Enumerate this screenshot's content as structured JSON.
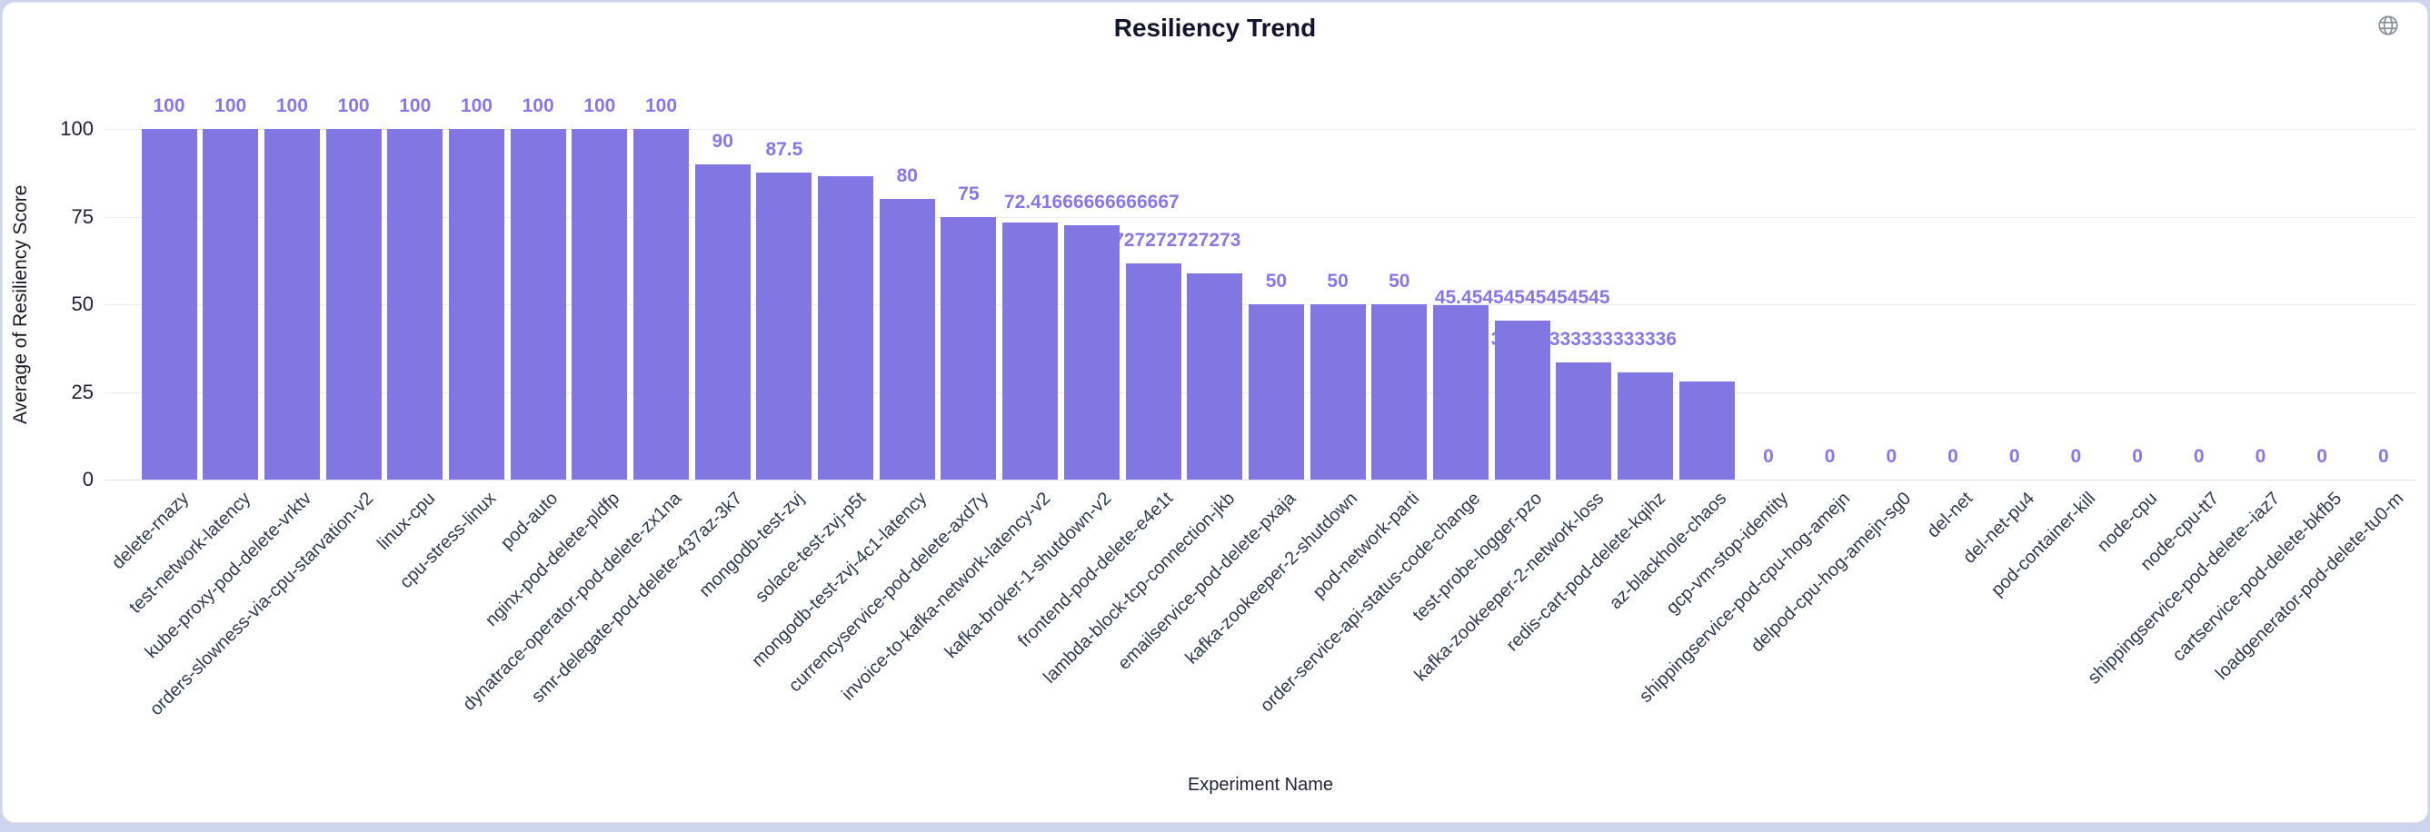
{
  "header": {
    "title": "Resiliency Trend",
    "globe_icon": "globe-icon"
  },
  "colors": {
    "bar": "#8277e2",
    "data_label": "#8678e8",
    "gridline": "#ececf1",
    "zero_line": "#dfe1e9",
    "axis_tick_text": "#1e1e2e",
    "x_label_text": "#2e3950",
    "card_background": "#ffffff",
    "page_background": "#ccd5ed"
  },
  "chart_data": {
    "type": "bar",
    "title": "Resiliency Trend",
    "xlabel": "Experiment Name",
    "ylabel": "Average of Resiliency Score",
    "ylim": [
      0,
      100
    ],
    "yticks": [
      0,
      25,
      50,
      75,
      100
    ],
    "grid": true,
    "legend": false,
    "categories": [
      "delete-rnazy",
      "test-network-latency",
      "kube-proxy-pod-delete-vrktv",
      "orders-slowness-via-cpu-starvation-v2",
      "linux-cpu",
      "cpu-stress-linux",
      "pod-auto",
      "nginx-pod-delete-pldfp",
      "dynatrace-operator-pod-delete-zx1na",
      "smr-delegate-pod-delete-437az-3k7",
      "mongodb-test-zvj",
      "solace-test-zvj-p5t",
      "mongodb-test-zvj-4c1-latency",
      "currencyservice-pod-delete-axd7y",
      "invoice-to-kafka-network-latency-v2",
      "kafka-broker-1-shutdown-v2",
      "frontend-pod-delete-e4e1t",
      "lambda-block-tcp-connection-jkb",
      "emailservice-pod-delete-pxaja",
      "kafka-zookeeper-2-shutdown",
      "pod-network-parti",
      "order-service-api-status-code-change",
      "test-probe-logger-pzo",
      "kafka-zookeeper-2-network-loss",
      "redis-cart-pod-delete-kqihz",
      "az-blackhole-chaos",
      "gcp-vm-stop-identity",
      "shippingservice-pod-cpu-hog-amejn",
      "delpod-cpu-hog-amejn-sg0",
      "del-net",
      "del-net-pu4",
      "pod-container-kill",
      "node-cpu",
      "node-cpu-tt7",
      "shippingservice-pod-delete--iaz7",
      "cartservice-pod-delete-bkfb5",
      "loadgenerator-pod-delete-tu0-m"
    ],
    "values": [
      100,
      100,
      100,
      100,
      100,
      100,
      100,
      100,
      100,
      90,
      87.5,
      86.4,
      80,
      75,
      73.3,
      72.41666666666667,
      61.72727272727273,
      58.8,
      50,
      50,
      50,
      49.7,
      45.45454545454545,
      33.333333333333336,
      30.6,
      28,
      0,
      0,
      0,
      0,
      0,
      0,
      0,
      0,
      0,
      0,
      0
    ],
    "data_labels": [
      "100",
      "100",
      "100",
      "100",
      "100",
      "100",
      "100",
      "100",
      "100",
      "90",
      "87.5",
      "",
      "80",
      "75",
      "",
      "72.41666666666667",
      "61.72727272727273",
      "",
      "50",
      "50",
      "50",
      "",
      "45.45454545454545",
      "33.333333333333336",
      "",
      "",
      "0",
      "0",
      "0",
      "0",
      "0",
      "0",
      "0",
      "0",
      "0",
      "0",
      "0"
    ]
  }
}
